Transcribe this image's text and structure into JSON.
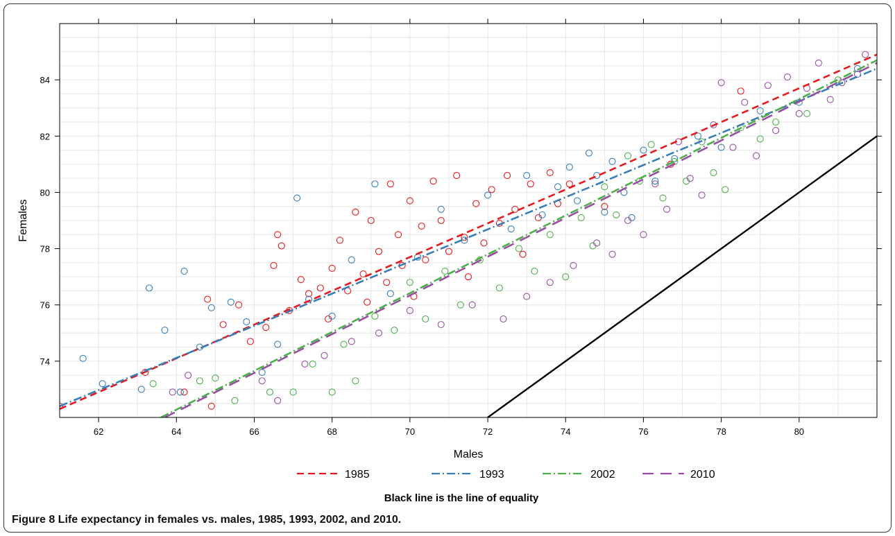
{
  "chart_data": {
    "type": "scatter",
    "xlabel": "Males",
    "ylabel": "Females",
    "xlim": [
      61,
      82
    ],
    "ylim": [
      72,
      86
    ],
    "x_ticks": [
      "62",
      "64",
      "66",
      "68",
      "70",
      "72",
      "74",
      "76",
      "78",
      "80"
    ],
    "y_ticks": [
      "74",
      "76",
      "78",
      "80",
      "82",
      "84"
    ],
    "grid": true,
    "legend_position": "bottom",
    "note": "Black line is the line of equality",
    "series": [
      {
        "name": "1985",
        "color": "#e41a1c",
        "dash": "dashed",
        "fit": [
          [
            61,
            72.3
          ],
          [
            82,
            84.9
          ]
        ],
        "points": [
          [
            61.0,
            72.4
          ],
          [
            63.2,
            73.6
          ],
          [
            64.2,
            72.9
          ],
          [
            64.8,
            76.2
          ],
          [
            64.9,
            72.4
          ],
          [
            65.2,
            75.3
          ],
          [
            65.6,
            76.0
          ],
          [
            65.9,
            74.7
          ],
          [
            66.3,
            75.2
          ],
          [
            66.5,
            77.4
          ],
          [
            66.6,
            78.5
          ],
          [
            66.7,
            78.1
          ],
          [
            66.9,
            75.8
          ],
          [
            67.2,
            76.9
          ],
          [
            67.4,
            76.4
          ],
          [
            67.7,
            76.6
          ],
          [
            67.9,
            75.5
          ],
          [
            68.0,
            77.3
          ],
          [
            68.2,
            78.3
          ],
          [
            68.4,
            76.5
          ],
          [
            68.6,
            79.3
          ],
          [
            68.8,
            77.1
          ],
          [
            68.9,
            76.1
          ],
          [
            69.0,
            79.0
          ],
          [
            69.2,
            77.9
          ],
          [
            69.4,
            76.8
          ],
          [
            69.5,
            80.3
          ],
          [
            69.7,
            78.5
          ],
          [
            69.8,
            77.4
          ],
          [
            70.0,
            79.7
          ],
          [
            70.1,
            76.3
          ],
          [
            70.3,
            78.8
          ],
          [
            70.4,
            77.6
          ],
          [
            70.6,
            80.4
          ],
          [
            70.8,
            79.0
          ],
          [
            71.0,
            77.9
          ],
          [
            71.2,
            80.6
          ],
          [
            71.4,
            78.4
          ],
          [
            71.5,
            77.0
          ],
          [
            71.7,
            79.6
          ],
          [
            71.9,
            78.2
          ],
          [
            72.1,
            80.1
          ],
          [
            72.3,
            78.9
          ],
          [
            72.5,
            80.6
          ],
          [
            72.7,
            79.4
          ],
          [
            72.9,
            77.8
          ],
          [
            73.1,
            80.3
          ],
          [
            73.3,
            79.1
          ],
          [
            73.6,
            80.7
          ],
          [
            73.8,
            79.6
          ],
          [
            74.1,
            80.3
          ],
          [
            75.0,
            79.5
          ],
          [
            76.7,
            81.0
          ],
          [
            78.5,
            83.6
          ]
        ]
      },
      {
        "name": "1993",
        "color": "#377eb8",
        "dash": "dashdot",
        "fit": [
          [
            61,
            72.4
          ],
          [
            82,
            84.4
          ]
        ],
        "points": [
          [
            61.6,
            74.1
          ],
          [
            62.1,
            73.2
          ],
          [
            63.1,
            73.0
          ],
          [
            63.3,
            76.6
          ],
          [
            63.7,
            75.1
          ],
          [
            64.1,
            72.9
          ],
          [
            64.2,
            77.2
          ],
          [
            64.6,
            74.5
          ],
          [
            64.9,
            75.9
          ],
          [
            65.4,
            76.1
          ],
          [
            65.8,
            75.4
          ],
          [
            66.2,
            73.6
          ],
          [
            66.6,
            74.6
          ],
          [
            67.1,
            79.8
          ],
          [
            67.4,
            76.2
          ],
          [
            68.0,
            75.6
          ],
          [
            68.5,
            77.6
          ],
          [
            69.1,
            80.3
          ],
          [
            69.5,
            76.4
          ],
          [
            70.2,
            77.7
          ],
          [
            70.8,
            79.4
          ],
          [
            71.4,
            78.3
          ],
          [
            72.0,
            79.9
          ],
          [
            72.6,
            78.7
          ],
          [
            73.0,
            80.6
          ],
          [
            73.4,
            79.2
          ],
          [
            73.8,
            80.2
          ],
          [
            74.1,
            80.9
          ],
          [
            74.3,
            79.7
          ],
          [
            74.6,
            81.4
          ],
          [
            74.8,
            80.6
          ],
          [
            75.0,
            79.3
          ],
          [
            75.2,
            81.1
          ],
          [
            75.5,
            80.0
          ],
          [
            75.7,
            79.1
          ],
          [
            76.0,
            81.5
          ],
          [
            76.3,
            80.4
          ],
          [
            76.8,
            81.2
          ],
          [
            77.4,
            82.0
          ],
          [
            78.0,
            81.6
          ],
          [
            79.0,
            82.9
          ],
          [
            80.0,
            83.2
          ],
          [
            81.5,
            84.4
          ]
        ]
      },
      {
        "name": "2002",
        "color": "#4daf4a",
        "dash": "dashdot",
        "fit": [
          [
            63.6,
            72.0
          ],
          [
            82,
            84.7
          ]
        ],
        "points": [
          [
            63.4,
            73.2
          ],
          [
            64.6,
            73.3
          ],
          [
            65.0,
            73.4
          ],
          [
            65.5,
            72.6
          ],
          [
            66.4,
            72.9
          ],
          [
            67.0,
            72.9
          ],
          [
            67.5,
            73.9
          ],
          [
            68.0,
            72.9
          ],
          [
            68.3,
            74.6
          ],
          [
            68.6,
            73.3
          ],
          [
            69.1,
            75.6
          ],
          [
            69.6,
            75.1
          ],
          [
            70.0,
            76.8
          ],
          [
            70.4,
            75.5
          ],
          [
            70.9,
            77.2
          ],
          [
            71.3,
            76.0
          ],
          [
            71.8,
            77.6
          ],
          [
            72.3,
            76.6
          ],
          [
            72.8,
            78.0
          ],
          [
            73.2,
            77.2
          ],
          [
            73.6,
            78.5
          ],
          [
            74.0,
            77.0
          ],
          [
            74.4,
            79.1
          ],
          [
            74.7,
            78.1
          ],
          [
            75.0,
            80.2
          ],
          [
            75.3,
            79.2
          ],
          [
            75.6,
            81.3
          ],
          [
            75.9,
            80.4
          ],
          [
            76.2,
            81.7
          ],
          [
            76.5,
            79.8
          ],
          [
            76.8,
            81.1
          ],
          [
            77.1,
            80.4
          ],
          [
            77.5,
            81.8
          ],
          [
            77.8,
            80.7
          ],
          [
            78.1,
            80.1
          ],
          [
            78.5,
            82.3
          ],
          [
            79.0,
            81.9
          ],
          [
            79.4,
            82.5
          ],
          [
            80.2,
            82.8
          ],
          [
            81.0,
            84.0
          ]
        ]
      },
      {
        "name": "2010",
        "color": "#984ea3",
        "dash": "longdash",
        "fit": [
          [
            63.7,
            72.0
          ],
          [
            82,
            84.6
          ]
        ],
        "points": [
          [
            63.9,
            72.9
          ],
          [
            64.3,
            73.5
          ],
          [
            66.2,
            73.3
          ],
          [
            66.6,
            72.6
          ],
          [
            67.3,
            73.9
          ],
          [
            67.8,
            74.2
          ],
          [
            68.5,
            74.7
          ],
          [
            69.2,
            75.0
          ],
          [
            70.0,
            75.8
          ],
          [
            70.8,
            75.3
          ],
          [
            71.6,
            76.0
          ],
          [
            72.4,
            75.5
          ],
          [
            73.0,
            76.3
          ],
          [
            73.6,
            76.8
          ],
          [
            74.2,
            77.4
          ],
          [
            74.8,
            78.2
          ],
          [
            75.2,
            77.8
          ],
          [
            75.6,
            79.0
          ],
          [
            76.0,
            78.5
          ],
          [
            76.3,
            80.3
          ],
          [
            76.6,
            79.4
          ],
          [
            76.9,
            81.8
          ],
          [
            77.2,
            80.5
          ],
          [
            77.5,
            79.9
          ],
          [
            77.8,
            82.4
          ],
          [
            78.0,
            83.9
          ],
          [
            78.3,
            81.6
          ],
          [
            78.6,
            83.2
          ],
          [
            78.9,
            81.3
          ],
          [
            79.2,
            83.8
          ],
          [
            79.4,
            82.2
          ],
          [
            79.7,
            84.1
          ],
          [
            80.0,
            82.8
          ],
          [
            80.2,
            83.7
          ],
          [
            80.5,
            84.6
          ],
          [
            80.8,
            83.3
          ],
          [
            81.1,
            83.9
          ],
          [
            81.5,
            84.2
          ],
          [
            81.7,
            84.9
          ]
        ]
      },
      {
        "name": "equality",
        "color": "#000000",
        "dash": "solid",
        "line": [
          [
            72,
            72
          ],
          [
            82,
            82
          ]
        ]
      }
    ]
  },
  "caption": {
    "label": "Figure 8",
    "text": " Life expectancy in females vs. males, 1985, 1993, 2002, and 2010."
  }
}
